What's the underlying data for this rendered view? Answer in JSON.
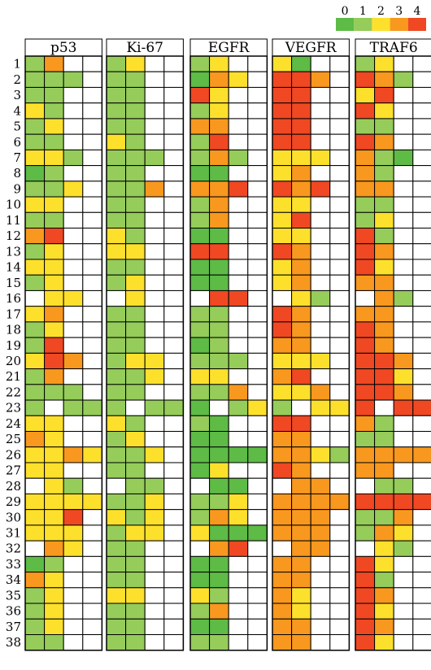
{
  "chart_data": {
    "type": "heatmap",
    "title": "",
    "legend": {
      "placement": "top-right",
      "levels": [
        "0",
        "1",
        "2",
        "3",
        "4"
      ],
      "colors": [
        "#5dbb46",
        "#95cc5a",
        "#fde02c",
        "#f8981e",
        "#ef4823"
      ]
    },
    "empty_color": "#ffffff",
    "rows": [
      "1",
      "2",
      "3",
      "4",
      "5",
      "6",
      "7",
      "8",
      "9",
      "10",
      "11",
      "12",
      "13",
      "14",
      "15",
      "16",
      "17",
      "18",
      "19",
      "20",
      "21",
      "22",
      "23",
      "24",
      "25",
      "26",
      "27",
      "28",
      "29",
      "30",
      "31",
      "32",
      "33",
      "34",
      "35",
      "36",
      "37",
      "38"
    ],
    "panels": [
      {
        "name": "p53",
        "values": [
          [
            1,
            3,
            null,
            null
          ],
          [
            1,
            1,
            1,
            null
          ],
          [
            1,
            1,
            null,
            null
          ],
          [
            2,
            1,
            null,
            null
          ],
          [
            1,
            2,
            null,
            null
          ],
          [
            1,
            1,
            null,
            null
          ],
          [
            2,
            2,
            1,
            null
          ],
          [
            0,
            1,
            null,
            null
          ],
          [
            1,
            1,
            2,
            null
          ],
          [
            2,
            2,
            null,
            null
          ],
          [
            1,
            1,
            null,
            null
          ],
          [
            3,
            4,
            null,
            null
          ],
          [
            1,
            2,
            null,
            null
          ],
          [
            2,
            2,
            null,
            null
          ],
          [
            1,
            2,
            null,
            null
          ],
          [
            null,
            2,
            2,
            null
          ],
          [
            2,
            3,
            null,
            null
          ],
          [
            1,
            2,
            null,
            null
          ],
          [
            1,
            4,
            null,
            null
          ],
          [
            2,
            4,
            3,
            null
          ],
          [
            1,
            3,
            null,
            null
          ],
          [
            1,
            1,
            1,
            null
          ],
          [
            1,
            null,
            1,
            1
          ],
          [
            2,
            2,
            null,
            null
          ],
          [
            3,
            2,
            null,
            null
          ],
          [
            2,
            2,
            3,
            2
          ],
          [
            2,
            2,
            null,
            null
          ],
          [
            null,
            2,
            1,
            null
          ],
          [
            2,
            2,
            2,
            2
          ],
          [
            2,
            2,
            4,
            null
          ],
          [
            2,
            2,
            2,
            null
          ],
          [
            null,
            3,
            2,
            null
          ],
          [
            0,
            1,
            null,
            null
          ],
          [
            3,
            2,
            null,
            null
          ],
          [
            1,
            2,
            null,
            null
          ],
          [
            1,
            2,
            null,
            null
          ],
          [
            1,
            2,
            null,
            null
          ],
          [
            1,
            1,
            null,
            null
          ]
        ]
      },
      {
        "name": "Ki-67",
        "values": [
          [
            1,
            2,
            null,
            null
          ],
          [
            1,
            1,
            null,
            null
          ],
          [
            1,
            1,
            null,
            null
          ],
          [
            1,
            1,
            null,
            null
          ],
          [
            1,
            1,
            null,
            null
          ],
          [
            2,
            1,
            null,
            null
          ],
          [
            1,
            1,
            1,
            null
          ],
          [
            1,
            1,
            null,
            null
          ],
          [
            1,
            1,
            3,
            null
          ],
          [
            1,
            1,
            null,
            null
          ],
          [
            1,
            1,
            null,
            null
          ],
          [
            2,
            1,
            null,
            null
          ],
          [
            2,
            2,
            null,
            null
          ],
          [
            1,
            1,
            null,
            null
          ],
          [
            1,
            2,
            null,
            null
          ],
          [
            null,
            2,
            null,
            null
          ],
          [
            1,
            1,
            null,
            null
          ],
          [
            1,
            1,
            null,
            null
          ],
          [
            1,
            1,
            null,
            null
          ],
          [
            1,
            2,
            2,
            null
          ],
          [
            1,
            1,
            2,
            null
          ],
          [
            1,
            1,
            null,
            null
          ],
          [
            1,
            null,
            1,
            1
          ],
          [
            2,
            1,
            null,
            null
          ],
          [
            1,
            2,
            null,
            null
          ],
          [
            1,
            1,
            2,
            null
          ],
          [
            1,
            1,
            null,
            null
          ],
          [
            null,
            1,
            1,
            null
          ],
          [
            1,
            1,
            2,
            null
          ],
          [
            2,
            1,
            2,
            null
          ],
          [
            1,
            2,
            2,
            null
          ],
          [
            1,
            1,
            null,
            null
          ],
          [
            1,
            1,
            null,
            null
          ],
          [
            1,
            1,
            null,
            null
          ],
          [
            2,
            2,
            null,
            null
          ],
          [
            1,
            1,
            null,
            null
          ],
          [
            1,
            1,
            null,
            null
          ],
          [
            1,
            1,
            null,
            null
          ]
        ]
      },
      {
        "name": "EGFR",
        "values": [
          [
            1,
            2,
            null,
            null
          ],
          [
            0,
            3,
            2,
            null
          ],
          [
            4,
            2,
            null,
            null
          ],
          [
            1,
            2,
            null,
            null
          ],
          [
            3,
            3,
            null,
            null
          ],
          [
            1,
            4,
            null,
            null
          ],
          [
            1,
            3,
            1,
            null
          ],
          [
            0,
            0,
            null,
            null
          ],
          [
            3,
            3,
            4,
            null
          ],
          [
            1,
            3,
            null,
            null
          ],
          [
            1,
            3,
            null,
            null
          ],
          [
            0,
            0,
            null,
            null
          ],
          [
            4,
            4,
            null,
            null
          ],
          [
            0,
            0,
            null,
            null
          ],
          [
            0,
            0,
            null,
            null
          ],
          [
            null,
            4,
            4,
            null
          ],
          [
            1,
            1,
            null,
            null
          ],
          [
            1,
            1,
            null,
            null
          ],
          [
            0,
            1,
            null,
            null
          ],
          [
            1,
            1,
            1,
            null
          ],
          [
            2,
            2,
            null,
            null
          ],
          [
            1,
            1,
            3,
            null
          ],
          [
            0,
            null,
            1,
            2
          ],
          [
            1,
            0,
            null,
            null
          ],
          [
            0,
            0,
            null,
            null
          ],
          [
            0,
            0,
            0,
            0
          ],
          [
            0,
            2,
            null,
            null
          ],
          [
            null,
            0,
            0,
            null
          ],
          [
            1,
            1,
            2,
            null
          ],
          [
            1,
            3,
            2,
            null
          ],
          [
            2,
            0,
            0,
            0
          ],
          [
            null,
            3,
            4,
            null
          ],
          [
            0,
            0,
            null,
            null
          ],
          [
            0,
            0,
            null,
            null
          ],
          [
            2,
            1,
            null,
            null
          ],
          [
            1,
            3,
            null,
            null
          ],
          [
            0,
            0,
            null,
            null
          ],
          [
            1,
            1,
            null,
            null
          ]
        ]
      },
      {
        "name": "VEGFR",
        "values": [
          [
            2,
            0,
            null,
            null
          ],
          [
            4,
            4,
            3,
            null
          ],
          [
            4,
            4,
            null,
            null
          ],
          [
            4,
            4,
            null,
            null
          ],
          [
            4,
            4,
            null,
            null
          ],
          [
            4,
            4,
            null,
            null
          ],
          [
            2,
            2,
            2,
            null
          ],
          [
            2,
            3,
            null,
            null
          ],
          [
            4,
            3,
            4,
            null
          ],
          [
            2,
            2,
            null,
            null
          ],
          [
            2,
            4,
            null,
            null
          ],
          [
            2,
            2,
            null,
            null
          ],
          [
            4,
            3,
            null,
            null
          ],
          [
            2,
            3,
            null,
            null
          ],
          [
            2,
            3,
            null,
            null
          ],
          [
            null,
            2,
            1,
            null
          ],
          [
            4,
            3,
            null,
            null
          ],
          [
            4,
            3,
            null,
            null
          ],
          [
            3,
            3,
            null,
            null
          ],
          [
            2,
            2,
            2,
            null
          ],
          [
            3,
            4,
            null,
            null
          ],
          [
            2,
            2,
            3,
            null
          ],
          [
            1,
            null,
            2,
            2
          ],
          [
            4,
            4,
            null,
            null
          ],
          [
            3,
            3,
            null,
            null
          ],
          [
            3,
            3,
            2,
            1
          ],
          [
            4,
            3,
            null,
            null
          ],
          [
            null,
            3,
            3,
            null
          ],
          [
            3,
            3,
            3,
            3
          ],
          [
            3,
            3,
            3,
            null
          ],
          [
            3,
            3,
            3,
            null
          ],
          [
            null,
            3,
            3,
            null
          ],
          [
            3,
            3,
            null,
            null
          ],
          [
            3,
            3,
            null,
            null
          ],
          [
            3,
            2,
            null,
            null
          ],
          [
            3,
            2,
            null,
            null
          ],
          [
            3,
            3,
            null,
            null
          ],
          [
            3,
            3,
            null,
            null
          ]
        ]
      },
      {
        "name": "TRAF6",
        "values": [
          [
            1,
            2,
            null,
            null
          ],
          [
            4,
            3,
            1,
            null
          ],
          [
            2,
            4,
            null,
            null
          ],
          [
            4,
            2,
            null,
            null
          ],
          [
            1,
            1,
            null,
            null
          ],
          [
            4,
            3,
            null,
            null
          ],
          [
            3,
            1,
            0,
            null
          ],
          [
            3,
            1,
            null,
            null
          ],
          [
            3,
            3,
            null,
            null
          ],
          [
            1,
            1,
            null,
            null
          ],
          [
            1,
            2,
            null,
            null
          ],
          [
            4,
            1,
            null,
            null
          ],
          [
            4,
            3,
            null,
            null
          ],
          [
            4,
            2,
            null,
            null
          ],
          [
            3,
            3,
            null,
            null
          ],
          [
            null,
            3,
            1,
            null
          ],
          [
            3,
            3,
            null,
            null
          ],
          [
            4,
            3,
            null,
            null
          ],
          [
            4,
            3,
            null,
            null
          ],
          [
            4,
            4,
            3,
            null
          ],
          [
            4,
            4,
            2,
            null
          ],
          [
            4,
            4,
            3,
            null
          ],
          [
            4,
            null,
            4,
            4
          ],
          [
            3,
            1,
            null,
            null
          ],
          [
            1,
            1,
            null,
            null
          ],
          [
            3,
            3,
            3,
            3
          ],
          [
            3,
            3,
            null,
            null
          ],
          [
            null,
            1,
            1,
            null
          ],
          [
            4,
            4,
            4,
            4
          ],
          [
            1,
            1,
            3,
            null
          ],
          [
            1,
            3,
            2,
            null
          ],
          [
            null,
            2,
            1,
            null
          ],
          [
            4,
            2,
            null,
            null
          ],
          [
            4,
            1,
            null,
            null
          ],
          [
            4,
            3,
            null,
            null
          ],
          [
            4,
            2,
            null,
            null
          ],
          [
            4,
            3,
            null,
            null
          ],
          [
            4,
            2,
            null,
            null
          ]
        ]
      }
    ]
  }
}
